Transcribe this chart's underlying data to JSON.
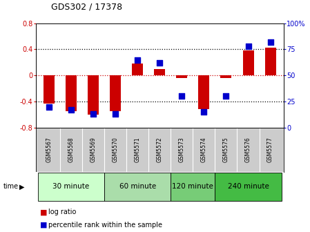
{
  "title": "GDS302 / 17378",
  "samples": [
    "GSM5567",
    "GSM5568",
    "GSM5569",
    "GSM5570",
    "GSM5571",
    "GSM5572",
    "GSM5573",
    "GSM5574",
    "GSM5575",
    "GSM5576",
    "GSM5577"
  ],
  "log_ratio": [
    -0.43,
    -0.55,
    -0.6,
    -0.55,
    0.18,
    0.1,
    -0.04,
    -0.52,
    -0.04,
    0.38,
    0.43
  ],
  "percentile_rank": [
    20,
    17,
    13,
    13,
    65,
    62,
    30,
    15,
    30,
    78,
    82
  ],
  "groups": [
    {
      "label": "30 minute",
      "indices": [
        0,
        1,
        2
      ],
      "color": "#ccffcc"
    },
    {
      "label": "60 minute",
      "indices": [
        3,
        4,
        5
      ],
      "color": "#aaddaa"
    },
    {
      "label": "120 minute",
      "indices": [
        6,
        7
      ],
      "color": "#77cc77"
    },
    {
      "label": "240 minute",
      "indices": [
        8,
        9,
        10
      ],
      "color": "#44bb44"
    }
  ],
  "ylim_left": [
    -0.8,
    0.8
  ],
  "ylim_right": [
    0,
    100
  ],
  "yticks_left": [
    -0.8,
    -0.4,
    0.0,
    0.4,
    0.8
  ],
  "yticks_right": [
    0,
    25,
    50,
    75,
    100
  ],
  "bar_color": "#cc0000",
  "dot_color": "#0000cc",
  "bar_width": 0.5,
  "dot_size": 30,
  "background_color": "#ffffff",
  "label_bg": "#cccccc",
  "zero_line_color": "#cc0000",
  "hline_color": "#000000"
}
